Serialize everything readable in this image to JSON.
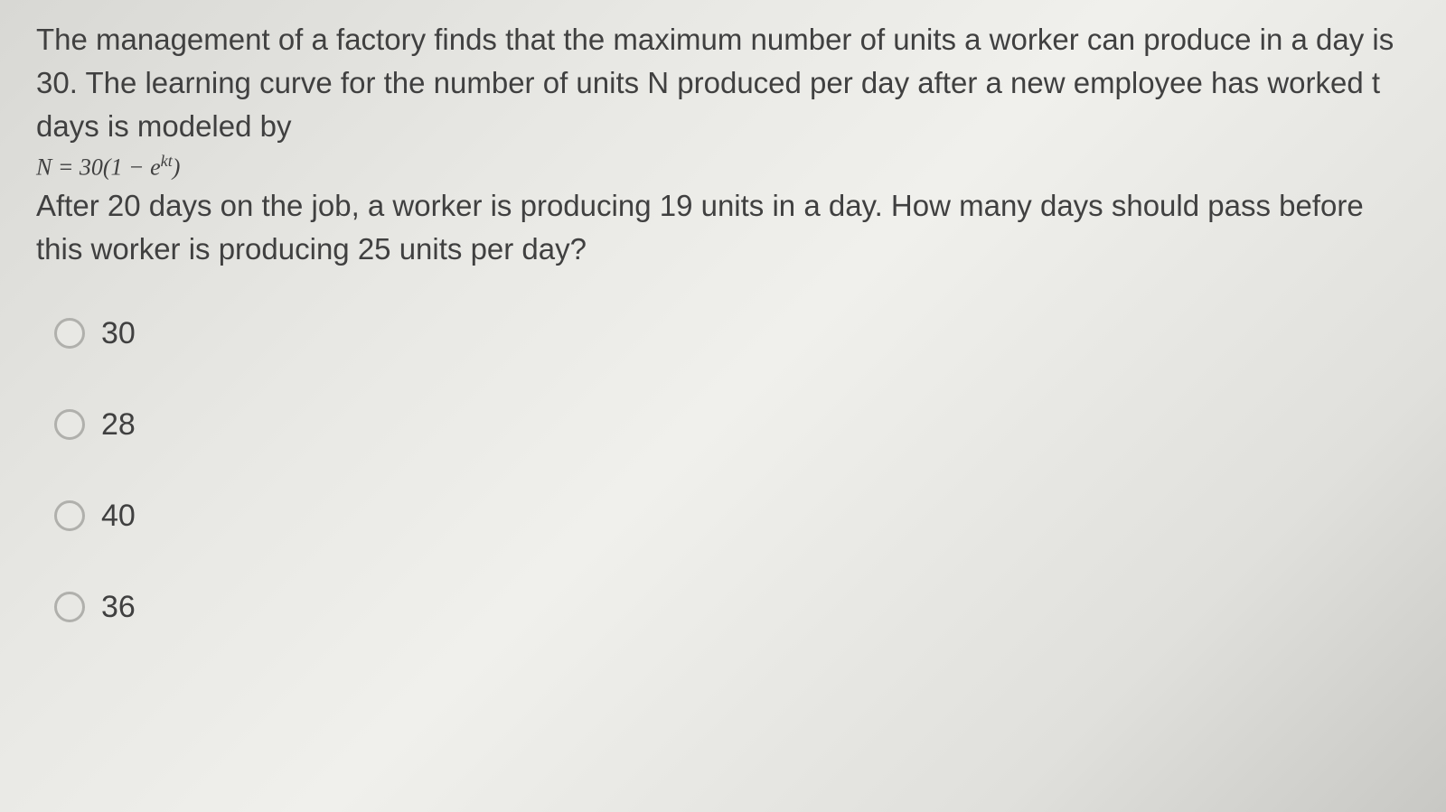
{
  "question": {
    "para1": "The management of a factory finds that the maximum number of units a worker can produce in a day is 30. The learning curve for the number of units N produced per day after a new employee has worked t days is modeled by",
    "formula_lhs": "N",
    "formula_eq": " = 30(1 − e",
    "formula_exp": "kt",
    "formula_close": ")",
    "para2": "After 20 days on the job, a worker is producing 19 units in a day. How many days should pass before this worker is producing 25 units per day?"
  },
  "options": [
    {
      "label": "30"
    },
    {
      "label": "28"
    },
    {
      "label": "40"
    },
    {
      "label": "36"
    }
  ],
  "style": {
    "text_color": "#404040",
    "radio_border": "#b0b0ac",
    "body_font_size": 33,
    "option_font_size": 34,
    "formula_font_size": 26
  }
}
